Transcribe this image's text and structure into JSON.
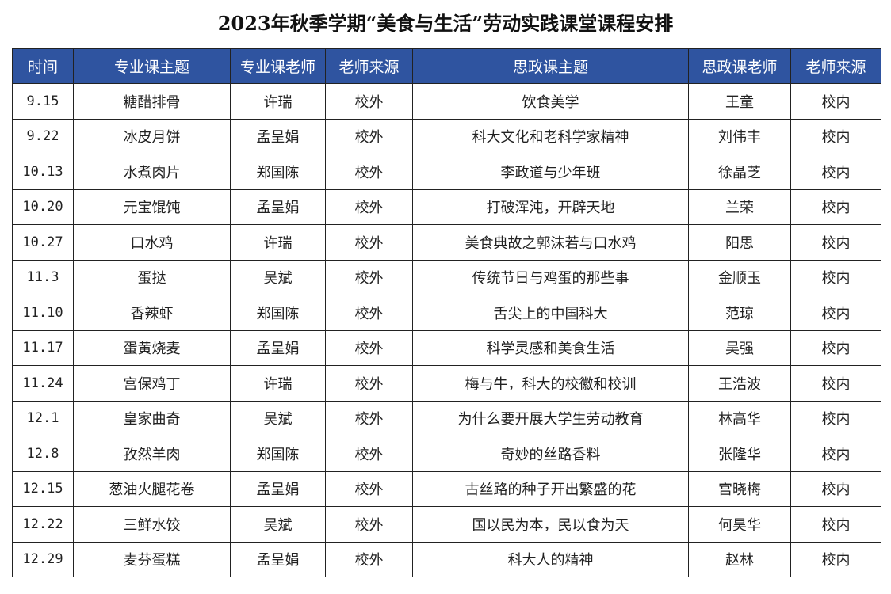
{
  "title": "2023年秋季学期“美食与生活”劳动实践课堂课程安排",
  "colors": {
    "header_bg": "#2f54a0",
    "header_text": "#ffffff"
  },
  "columns": [
    "时间",
    "专业课主题",
    "专业课老师",
    "老师来源",
    "思政课主题",
    "思政课老师",
    "老师来源"
  ],
  "rows": [
    [
      "9.15",
      "糖醋排骨",
      "许瑞",
      "校外",
      "饮食美学",
      "王童",
      "校内"
    ],
    [
      "9.22",
      "冰皮月饼",
      "孟呈娟",
      "校外",
      "科大文化和老科学家精神",
      "刘伟丰",
      "校内"
    ],
    [
      "10.13",
      "水煮肉片",
      "郑国陈",
      "校外",
      "李政道与少年班",
      "徐晶芝",
      "校内"
    ],
    [
      "10.20",
      "元宝馄饨",
      "孟呈娟",
      "校外",
      "打破浑沌，开辟天地",
      "兰荣",
      "校内"
    ],
    [
      "10.27",
      "口水鸡",
      "许瑞",
      "校外",
      "美食典故之郭沫若与口水鸡",
      "阳思",
      "校内"
    ],
    [
      "11.3",
      "蛋挞",
      "吴斌",
      "校外",
      "传统节日与鸡蛋的那些事",
      "金顺玉",
      "校内"
    ],
    [
      "11.10",
      "香辣虾",
      "郑国陈",
      "校外",
      "舌尖上的中国科大",
      "范琼",
      "校内"
    ],
    [
      "11.17",
      "蛋黄烧麦",
      "孟呈娟",
      "校外",
      "科学灵感和美食生活",
      "吴强",
      "校内"
    ],
    [
      "11.24",
      "宫保鸡丁",
      "许瑞",
      "校外",
      "梅与牛，科大的校徽和校训",
      "王浩波",
      "校内"
    ],
    [
      "12.1",
      "皇家曲奇",
      "吴斌",
      "校外",
      "为什么要开展大学生劳动教育",
      "林高华",
      "校内"
    ],
    [
      "12.8",
      "孜然羊肉",
      "郑国陈",
      "校外",
      "奇妙的丝路香料",
      "张隆华",
      "校内"
    ],
    [
      "12.15",
      "葱油火腿花卷",
      "孟呈娟",
      "校外",
      "古丝路的种子开出繁盛的花",
      "宫晓梅",
      "校内"
    ],
    [
      "12.22",
      "三鲜水饺",
      "吴斌",
      "校外",
      "国以民为本，民以食为天",
      "何昊华",
      "校内"
    ],
    [
      "12.29",
      "麦芬蛋糕",
      "孟呈娟",
      "校外",
      "科大人的精神",
      "赵林",
      "校内"
    ]
  ]
}
